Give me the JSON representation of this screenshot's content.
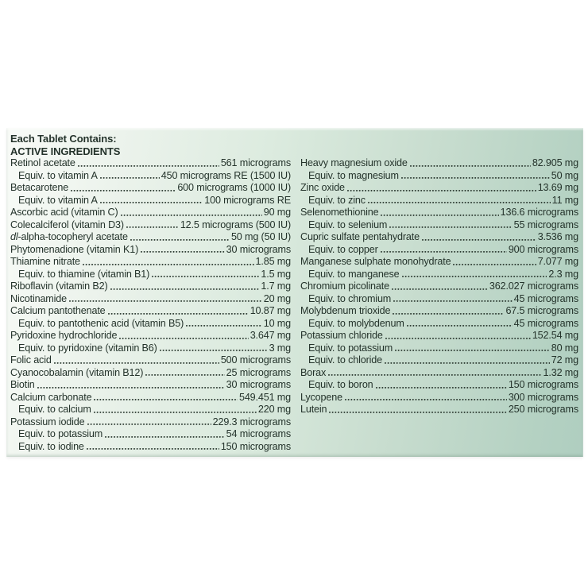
{
  "label": {
    "title": "Each Tablet Contains:",
    "subtitle": "ACTIVE INGREDIENTS"
  },
  "colors": {
    "panel_gradient_start": "#f8fbf7",
    "panel_gradient_end": "#afcec0",
    "ink": "#24332b",
    "page_background": "#ffffff"
  },
  "columns": {
    "left": [
      {
        "name": "Retinol acetate",
        "value": "561 micrograms",
        "indent": false
      },
      {
        "name": "Equiv. to vitamin A",
        "value": "450 micrograms RE (1500 IU)",
        "indent": true
      },
      {
        "name": "Betacarotene",
        "value": "600 micrograms (1000 IU)",
        "indent": false
      },
      {
        "name": "Equiv. to vitamin A",
        "value": "100 micrograms RE",
        "indent": true
      },
      {
        "name": "Ascorbic acid (vitamin C)",
        "value": "90 mg",
        "indent": false
      },
      {
        "name": "Colecalciferol (vitamin D3)",
        "value": "12.5 micrograms (500 IU)",
        "indent": false
      },
      {
        "italic_prefix": "dl",
        "name": "-alpha-tocopheryl acetate",
        "value": "50 mg (50 IU)",
        "indent": false
      },
      {
        "name": "Phytomenadione (vitamin K1)",
        "value": "30 micrograms",
        "indent": false
      },
      {
        "name": "Thiamine nitrate",
        "value": "1.85 mg",
        "indent": false
      },
      {
        "name": "Equiv. to thiamine (vitamin B1)",
        "value": "1.5 mg",
        "indent": true
      },
      {
        "name": "Riboflavin (vitamin B2)",
        "value": "1.7 mg",
        "indent": false
      },
      {
        "name": "Nicotinamide",
        "value": "20 mg",
        "indent": false
      },
      {
        "name": "Calcium pantothenate",
        "value": "10.87 mg",
        "indent": false
      },
      {
        "name": "Equiv. to pantothenic acid (vitamin B5)",
        "value": "10 mg",
        "indent": true
      },
      {
        "name": "Pyridoxine hydrochloride",
        "value": "3.647 mg",
        "indent": false
      },
      {
        "name": "Equiv. to pyridoxine (vitamin B6)",
        "value": "3 mg",
        "indent": true
      },
      {
        "name": "Folic acid",
        "value": "500 micrograms",
        "indent": false
      },
      {
        "name": "Cyanocobalamin (vitamin B12)",
        "value": "25 micrograms",
        "indent": false
      },
      {
        "name": "Biotin",
        "value": "30 micrograms",
        "indent": false
      },
      {
        "name": "Calcium carbonate",
        "value": "549.451 mg",
        "indent": false
      },
      {
        "name": "Equiv. to calcium",
        "value": "220 mg",
        "indent": true
      },
      {
        "name": "Potassium iodide",
        "value": "229.3 micrograms",
        "indent": false
      },
      {
        "name": "Equiv. to potassium",
        "value": "54 micrograms",
        "indent": true
      },
      {
        "name": "Equiv. to iodine",
        "value": "150 micrograms",
        "indent": true
      }
    ],
    "right": [
      {
        "name": "Heavy magnesium oxide",
        "value": "82.905 mg",
        "indent": false
      },
      {
        "name": "Equiv. to magnesium",
        "value": "50 mg",
        "indent": true
      },
      {
        "name": "Zinc oxide",
        "value": "13.69 mg",
        "indent": false
      },
      {
        "name": "Equiv. to zinc",
        "value": "11 mg",
        "indent": true
      },
      {
        "name": "Selenomethionine",
        "value": "136.6 micrograms",
        "indent": false
      },
      {
        "name": "Equiv. to selenium",
        "value": "55 micrograms",
        "indent": true
      },
      {
        "name": "Cupric sulfate pentahydrate",
        "value": "3.536 mg",
        "indent": false
      },
      {
        "name": "Equiv. to copper",
        "value": "900 micrograms",
        "indent": true
      },
      {
        "name": "Manganese sulphate monohydrate",
        "value": "7.077 mg",
        "indent": false
      },
      {
        "name": "Equiv. to manganese",
        "value": "2.3 mg",
        "indent": true
      },
      {
        "name": "Chromium picolinate",
        "value": "362.027 micrograms",
        "indent": false
      },
      {
        "name": "Equiv. to chromium",
        "value": "45 micrograms",
        "indent": true
      },
      {
        "name": "Molybdenum trioxide",
        "value": "67.5 micrograms",
        "indent": false
      },
      {
        "name": "Equiv. to molybdenum",
        "value": "45 micrograms",
        "indent": true
      },
      {
        "name": "Potassium chloride",
        "value": "152.54 mg",
        "indent": false
      },
      {
        "name": "Equiv. to potassium",
        "value": "80 mg",
        "indent": true
      },
      {
        "name": "Equiv. to chloride",
        "value": "72 mg",
        "indent": true
      },
      {
        "name": "Borax",
        "value": "1.32 mg",
        "indent": false
      },
      {
        "name": "Equiv. to boron",
        "value": "150 micrograms",
        "indent": true
      },
      {
        "name": "Lycopene",
        "value": "300 micrograms",
        "indent": false
      },
      {
        "name": "Lutein",
        "value": "250 micrograms",
        "indent": false
      }
    ]
  }
}
